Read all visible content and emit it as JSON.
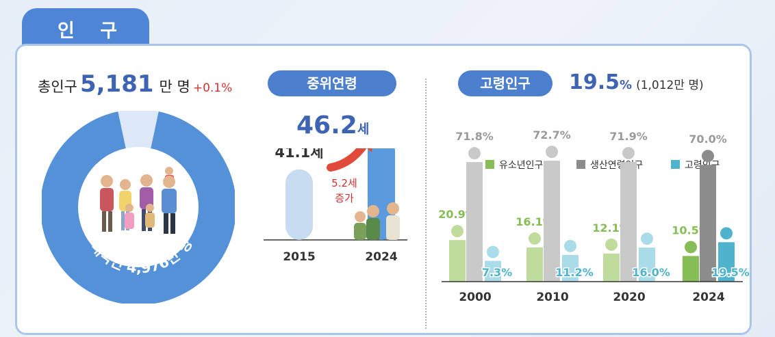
{
  "tab_title": "인 구",
  "total": {
    "label": "총인구",
    "value": "5,181",
    "unit": "만 명",
    "change": "+0.1%"
  },
  "donut": {
    "label": "내국인 4,976만 명",
    "colors": {
      "main": "#5591d8",
      "rest": "#dce8f7"
    }
  },
  "median": {
    "pill": "중위연령",
    "value": "46.2",
    "unit": "세"
  },
  "elderly": {
    "pill": "고령인구",
    "value": "19.5",
    "unit": "%",
    "sub": "(1,012만 명)"
  },
  "colors": {
    "accent": "#3e63b3",
    "red": "#d0322f"
  },
  "chart_data": [
    {
      "type": "bar",
      "categories": [
        "2015",
        "2024"
      ],
      "values": [
        41.1,
        46.2
      ],
      "value_labels": [
        "41.1세",
        "46.2세"
      ],
      "annotation": [
        "5.2세",
        "증가"
      ],
      "colors": [
        "#c7dbf1",
        "#5c9ade"
      ]
    },
    {
      "type": "bar",
      "categories": [
        "2000",
        "2010",
        "2020",
        "2024"
      ],
      "legend": [
        "유소년인구",
        "생산연령인구",
        "고령인구"
      ],
      "series": [
        {
          "name": "유소년인구",
          "values": [
            20.9,
            16.1,
            12.1,
            10.5
          ],
          "labels": [
            "20.9%",
            "16.1%",
            "12.1%",
            "10.5%"
          ]
        },
        {
          "name": "생산연령인구",
          "values": [
            71.8,
            72.7,
            71.9,
            70.0
          ],
          "labels": [
            "71.8%",
            "72.7%",
            "71.9%",
            "70.0%"
          ]
        },
        {
          "name": "고령인구",
          "values": [
            7.3,
            11.2,
            16.0,
            19.5
          ],
          "labels": [
            "7.3%",
            "11.2%",
            "16.0%",
            "19.5%"
          ]
        }
      ],
      "colors": {
        "light": [
          "#bfdc9d",
          "#c9c9c9",
          "#a9dbe8"
        ],
        "dark": [
          "#86bd56",
          "#8c8c8c",
          "#4fb3cd"
        ],
        "label": [
          "#86bd56",
          "#9a9a9a",
          "#4fb3cd"
        ]
      }
    }
  ]
}
